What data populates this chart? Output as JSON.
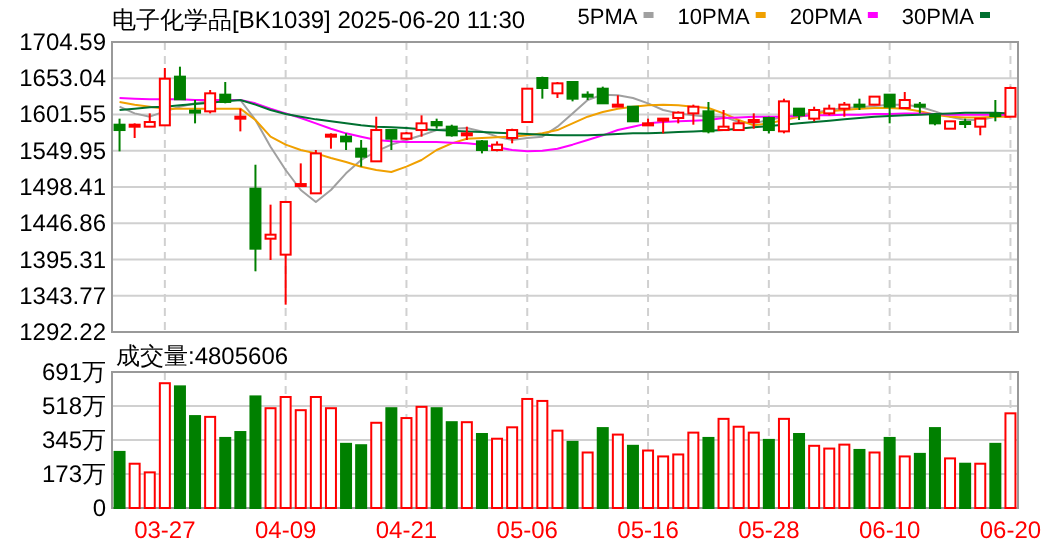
{
  "chart_data": [
    {
      "type": "candlestick",
      "title": "电子化学品[BK1039] 2025-06-20 11:30",
      "categories": [
        null,
        null,
        null,
        null,
        null,
        null,
        null,
        null,
        null,
        null,
        null,
        null,
        null,
        null,
        null,
        null,
        null,
        null,
        null,
        null,
        null,
        null,
        null,
        null,
        null,
        null,
        null,
        null,
        null,
        null,
        null,
        null,
        null,
        null,
        null,
        null,
        null,
        null,
        null,
        null,
        null,
        null,
        null,
        null,
        null,
        null,
        null,
        null,
        null,
        null,
        null,
        null,
        null,
        null,
        null,
        null,
        null,
        null,
        null,
        null
      ],
      "ohlc": [
        [
          1587.0,
          1595.6,
          1549.1,
          1579.4
        ],
        [
          1586.1,
          1588.9,
          1568.1,
          1587.0
        ],
        [
          1584.2,
          1603.1,
          1584.2,
          1590.8
        ],
        [
          1586.1,
          1667.6,
          1586.1,
          1652.4
        ],
        [
          1655.3,
          1669.5,
          1623.1,
          1623.1
        ],
        [
          1607.0,
          1622.1,
          1588.9,
          1606.0
        ],
        [
          1606.0,
          1636.3,
          1603.1,
          1631.6
        ],
        [
          1629.7,
          1647.7,
          1617.4,
          1619.3
        ],
        [
          1597.5,
          1609.8,
          1577.5,
          1598.4
        ],
        [
          1496.0,
          1530.1,
          1378.5,
          1410.7
        ],
        [
          1424.9,
          1473.3,
          1394.6,
          1430.6
        ],
        [
          1402.2,
          1477.1,
          1331.1,
          1477.1
        ],
        [
          1501.7,
          1532.0,
          1501.7,
          1502.6
        ],
        [
          1489.4,
          1551.0,
          1489.4,
          1546.2
        ],
        [
          1571.9,
          1574.7,
          1552.9,
          1572.8
        ],
        [
          1570.0,
          1574.7,
          1551.0,
          1563.3
        ],
        [
          1552.9,
          1565.2,
          1527.3,
          1541.5
        ],
        [
          1534.9,
          1598.4,
          1534.9,
          1579.4
        ],
        [
          1579.4,
          1579.4,
          1551.0,
          1567.1
        ],
        [
          1567.1,
          1576.6,
          1565.2,
          1574.7
        ],
        [
          1579.4,
          1600.3,
          1570.0,
          1588.9
        ],
        [
          1590.8,
          1595.6,
          1581.3,
          1586.1
        ],
        [
          1584.2,
          1587.0,
          1570.0,
          1571.9
        ],
        [
          1573.8,
          1584.2,
          1565.2,
          1574.7
        ],
        [
          1563.3,
          1565.2,
          1546.2,
          1551.0
        ],
        [
          1551.0,
          1563.3,
          1549.1,
          1558.6
        ],
        [
          1568.1,
          1581.3,
          1560.5,
          1579.4
        ],
        [
          1590.8,
          1638.2,
          1590.8,
          1638.2
        ],
        [
          1653.4,
          1655.3,
          1624.0,
          1639.2
        ],
        [
          1631.6,
          1647.7,
          1625.0,
          1645.8
        ],
        [
          1647.7,
          1647.7,
          1620.2,
          1624.0
        ],
        [
          1629.7,
          1634.4,
          1622.1,
          1628.8
        ],
        [
          1638.2,
          1641.1,
          1617.4,
          1617.4
        ],
        [
          1614.6,
          1628.8,
          1612.6,
          1615.5
        ],
        [
          1612.6,
          1612.6,
          1591.8,
          1591.8
        ],
        [
          1588.0,
          1595.6,
          1588.0,
          1588.9
        ],
        [
          1594.7,
          1595.6,
          1574.7,
          1595.6
        ],
        [
          1596.5,
          1606.0,
          1588.9,
          1604.1
        ],
        [
          1603.1,
          1615.5,
          1587.0,
          1612.6
        ],
        [
          1606.0,
          1619.3,
          1574.7,
          1577.5
        ],
        [
          1579.4,
          1607.9,
          1579.4,
          1584.2
        ],
        [
          1579.4,
          1593.7,
          1579.4,
          1588.9
        ],
        [
          1592.8,
          1603.1,
          1581.3,
          1593.7
        ],
        [
          1596.5,
          1598.4,
          1574.7,
          1579.4
        ],
        [
          1577.5,
          1624.0,
          1574.7,
          1620.2
        ],
        [
          1609.8,
          1609.8,
          1593.7,
          1600.3
        ],
        [
          1595.6,
          1612.6,
          1591.8,
          1607.9
        ],
        [
          1603.1,
          1615.5,
          1600.3,
          1609.8
        ],
        [
          1609.8,
          1619.3,
          1598.4,
          1615.5
        ],
        [
          1615.5,
          1624.0,
          1607.9,
          1614.6
        ],
        [
          1615.5,
          1626.9,
          1615.5,
          1626.9
        ],
        [
          1629.7,
          1629.7,
          1588.9,
          1612.6
        ],
        [
          1610.7,
          1633.5,
          1610.7,
          1622.1
        ],
        [
          1615.5,
          1619.3,
          1603.1,
          1614.6
        ],
        [
          1600.3,
          1603.1,
          1586.1,
          1588.9
        ],
        [
          1581.3,
          1591.8,
          1581.3,
          1591.8
        ],
        [
          1590.8,
          1595.6,
          1582.3,
          1589.9
        ],
        [
          1584.2,
          1595.6,
          1571.9,
          1595.6
        ],
        [
          1602.2,
          1622.1,
          1591.8,
          1601.3
        ],
        [
          1598.4,
          1641.1,
          1598.4,
          1639.2
        ]
      ],
      "colors": [
        "#008000",
        "#ff0000",
        "#ff0000",
        "#ff0000",
        "#008000",
        "#008000",
        "#ff0000",
        "#008000",
        "#ff0000",
        "#008000",
        "#ff0000",
        "#ff0000",
        "#ff0000",
        "#ff0000",
        "#ff0000",
        "#008000",
        "#008000",
        "#ff0000",
        "#008000",
        "#ff0000",
        "#ff0000",
        "#008000",
        "#008000",
        "#ff0000",
        "#008000",
        "#ff0000",
        "#ff0000",
        "#ff0000",
        "#008000",
        "#ff0000",
        "#008000",
        "#008000",
        "#008000",
        "#ff0000",
        "#008000",
        "#ff0000",
        "#ff0000",
        "#ff0000",
        "#ff0000",
        "#008000",
        "#ff0000",
        "#ff0000",
        "#ff0000",
        "#008000",
        "#ff0000",
        "#008000",
        "#ff0000",
        "#ff0000",
        "#ff0000",
        "#008000",
        "#ff0000",
        "#008000",
        "#ff0000",
        "#008000",
        "#008000",
        "#ff0000",
        "#008000",
        "#ff0000",
        "#008000",
        "#ff0000"
      ],
      "series": [
        {
          "type": "line",
          "name": "5PMA",
          "color": "#a0a0a0",
          "values": [
            1612.6,
            1603.1,
            1598.4,
            1606.0,
            1612.6,
            1617.4,
            1620.2,
            1621.2,
            1622.1,
            1593.7,
            1555.7,
            1522.6,
            1494.1,
            1477.1,
            1494.1,
            1517.8,
            1536.8,
            1549.1,
            1558.6,
            1565.2,
            1571.9,
            1579.4,
            1581.3,
            1582.3,
            1577.5,
            1570.0,
            1565.2,
            1568.1,
            1570.0,
            1584.2,
            1603.1,
            1622.1,
            1629.7,
            1628.8,
            1625.0,
            1617.4,
            1607.9,
            1603.1,
            1600.3,
            1598.4,
            1598.4,
            1590.8,
            1588.9,
            1593.7,
            1598.4,
            1601.3,
            1604.1,
            1607.9,
            1610.7,
            1611.7,
            1613.6,
            1615.5,
            1615.5,
            1612.6,
            1606.0,
            1598.4,
            1593.7,
            1593.7,
            1598.4,
            1600.3
          ]
        },
        {
          "type": "line",
          "name": "10PMA",
          "color": "#f0a000",
          "values": [
            1619.3,
            1615.5,
            1612.6,
            1609.8,
            1609.8,
            1609.8,
            1609.8,
            1609.8,
            1609.8,
            1593.7,
            1570.0,
            1558.6,
            1551.0,
            1546.2,
            1539.6,
            1534.0,
            1527.3,
            1522.6,
            1519.7,
            1527.3,
            1536.8,
            1551.0,
            1560.5,
            1567.1,
            1568.1,
            1569.0,
            1570.0,
            1571.9,
            1574.7,
            1579.4,
            1588.9,
            1598.4,
            1605.0,
            1609.8,
            1612.6,
            1614.5,
            1615.5,
            1614.5,
            1612.6,
            1610.7,
            1603.1,
            1593.7,
            1586.1,
            1588.9,
            1593.7,
            1598.4,
            1602.2,
            1606.0,
            1607.9,
            1609.8,
            1610.7,
            1610.7,
            1609.8,
            1606.0,
            1601.3,
            1598.4,
            1597.4,
            1597.4,
            1598.4,
            1598.4
          ]
        },
        {
          "type": "line",
          "name": "20PMA",
          "color": "#ff00ff",
          "values": [
            1625.0,
            1624.0,
            1623.1,
            1623.1,
            1623.1,
            1622.1,
            1622.1,
            1622.1,
            1622.1,
            1617.4,
            1609.8,
            1603.1,
            1596.5,
            1588.9,
            1581.3,
            1574.7,
            1570.0,
            1565.2,
            1563.3,
            1562.4,
            1562.4,
            1562.4,
            1561.4,
            1560.5,
            1558.6,
            1554.8,
            1551.0,
            1549.1,
            1550.0,
            1552.9,
            1558.6,
            1565.2,
            1571.9,
            1579.4,
            1584.2,
            1588.9,
            1590.8,
            1591.8,
            1592.7,
            1593.7,
            1596.5,
            1597.4,
            1598.4,
            1598.4,
            1598.4,
            1599.4,
            1600.3,
            1600.3,
            1601.3,
            1601.3,
            1602.2,
            1602.2,
            1603.1,
            1603.1,
            1602.2,
            1601.3,
            1601.3,
            1601.3,
            1601.3,
            1601.3
          ]
        },
        {
          "type": "line",
          "name": "30PMA",
          "color": "#007030",
          "values": [
            1607.9,
            1609.8,
            1611.7,
            1612.6,
            1614.5,
            1616.4,
            1618.3,
            1620.2,
            1622.1,
            1615.5,
            1607.9,
            1602.2,
            1598.4,
            1594.6,
            1591.8,
            1588.9,
            1586.1,
            1584.2,
            1583.2,
            1582.3,
            1580.4,
            1579.4,
            1578.5,
            1577.5,
            1576.6,
            1575.6,
            1574.7,
            1573.8,
            1572.8,
            1571.9,
            1571.9,
            1571.9,
            1572.8,
            1573.8,
            1574.7,
            1574.7,
            1575.6,
            1576.6,
            1577.5,
            1578.5,
            1579.4,
            1581.3,
            1583.2,
            1585.1,
            1587.0,
            1588.9,
            1590.8,
            1592.7,
            1594.6,
            1596.5,
            1598.4,
            1599.4,
            1600.3,
            1601.3,
            1602.2,
            1603.1,
            1604.1,
            1604.1,
            1604.1,
            1603.1
          ]
        }
      ],
      "ylim": [
        1292.22,
        1704.59
      ],
      "yticks": [
        1292.22,
        1343.77,
        1395.31,
        1446.86,
        1498.41,
        1549.95,
        1601.55,
        1653.04,
        1704.59
      ],
      "grid": true,
      "legend": "top right",
      "tick_labels": "y"
    },
    {
      "type": "bar",
      "title": "成交量:4805606",
      "categories": [
        null,
        null,
        null,
        "03-27",
        null,
        null,
        null,
        null,
        null,
        null,
        null,
        "04-09",
        null,
        null,
        null,
        null,
        null,
        null,
        null,
        "04-21",
        null,
        null,
        null,
        null,
        null,
        null,
        null,
        "05-06",
        null,
        null,
        null,
        null,
        null,
        null,
        null,
        "05-16",
        null,
        null,
        null,
        null,
        null,
        null,
        null,
        "05-28",
        null,
        null,
        null,
        null,
        null,
        null,
        null,
        "06-10",
        null,
        null,
        null,
        null,
        null,
        null,
        null,
        "06-20"
      ],
      "values": [
        285,
        225,
        181,
        634,
        618,
        467,
        463,
        356,
        386,
        567,
        507,
        564,
        497,
        564,
        507,
        326,
        319,
        433,
        507,
        457,
        514,
        507,
        436,
        436,
        376,
        352,
        410,
        554,
        544,
        393,
        336,
        282,
        406,
        373,
        316,
        292,
        262,
        272,
        383,
        356,
        453,
        413,
        383,
        346,
        453,
        376,
        316,
        302,
        322,
        295,
        282,
        356,
        262,
        275,
        406,
        252,
        225,
        225,
        326,
        481
      ],
      "colors": [
        "#008000",
        "#ff0000",
        "#ff0000",
        "#ff0000",
        "#008000",
        "#008000",
        "#ff0000",
        "#008000",
        "#008000",
        "#008000",
        "#ff0000",
        "#ff0000",
        "#ff0000",
        "#ff0000",
        "#ff0000",
        "#008000",
        "#008000",
        "#ff0000",
        "#008000",
        "#ff0000",
        "#ff0000",
        "#008000",
        "#008000",
        "#ff0000",
        "#008000",
        "#ff0000",
        "#ff0000",
        "#ff0000",
        "#ff0000",
        "#ff0000",
        "#008000",
        "#ff0000",
        "#008000",
        "#ff0000",
        "#008000",
        "#ff0000",
        "#ff0000",
        "#ff0000",
        "#ff0000",
        "#008000",
        "#ff0000",
        "#ff0000",
        "#ff0000",
        "#008000",
        "#ff0000",
        "#008000",
        "#ff0000",
        "#ff0000",
        "#ff0000",
        "#008000",
        "#ff0000",
        "#008000",
        "#ff0000",
        "#008000",
        "#008000",
        "#ff0000",
        "#008000",
        "#ff0000",
        "#008000",
        "#ff0000"
      ],
      "ylim": [
        0,
        691
      ],
      "yticks": [
        0,
        {
          "value": 173,
          "label": "173万"
        },
        {
          "value": 345,
          "label": "345万"
        },
        {
          "value": 518,
          "label": "518万"
        },
        {
          "value": 691,
          "label": "691万"
        }
      ],
      "grid": true
    }
  ]
}
